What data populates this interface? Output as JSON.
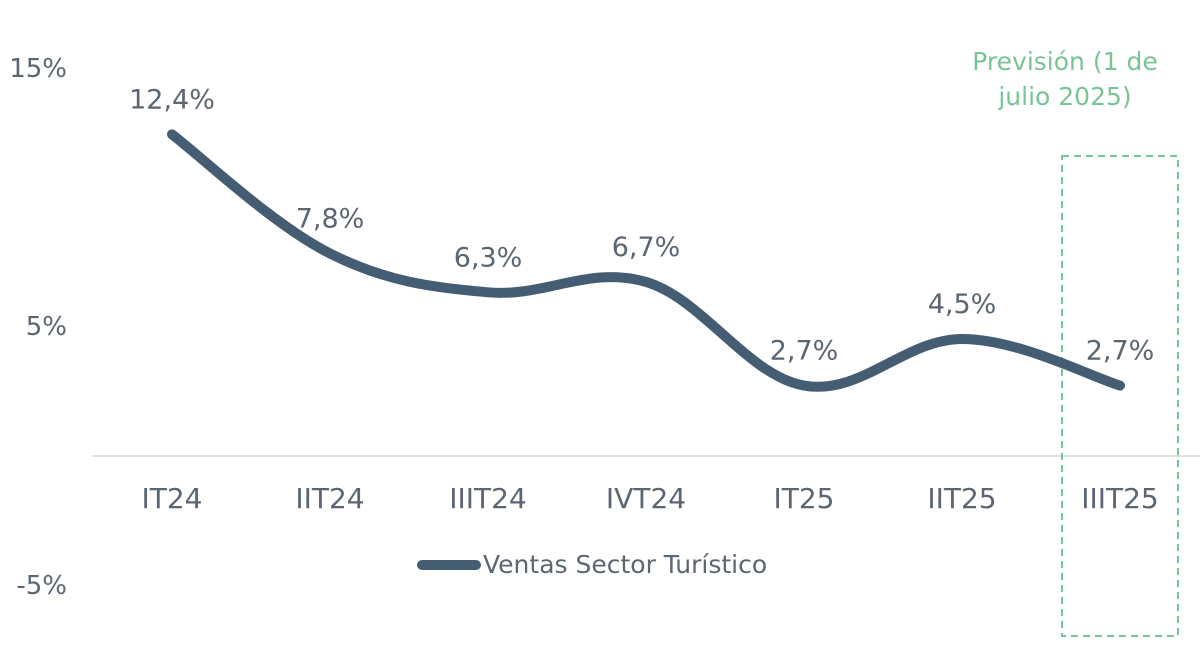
{
  "chart_data": {
    "type": "line",
    "categories": [
      "IT24",
      "IIT24",
      "IIIT24",
      "IVT24",
      "IT25",
      "IIT25",
      "IIIT25"
    ],
    "series": [
      {
        "name": "Ventas Sector Turístico",
        "values": [
          12.4,
          7.8,
          6.3,
          6.7,
          2.7,
          4.5,
          2.7
        ],
        "labels": [
          "12,4%",
          "7,8%",
          "6,3%",
          "6,7%",
          "2,7%",
          "4,5%",
          "2,7%"
        ],
        "color": "#455d73"
      }
    ],
    "y_ticks": [
      "15%",
      "5%",
      "-5%"
    ],
    "ylim": [
      -5,
      15
    ],
    "grid": false,
    "legend": "bottom-center",
    "forecast_box": {
      "category": "IIIT25",
      "label_line1": "Previsión (1 de",
      "label_line2": "julio 2025)",
      "color": "#79c497"
    }
  }
}
